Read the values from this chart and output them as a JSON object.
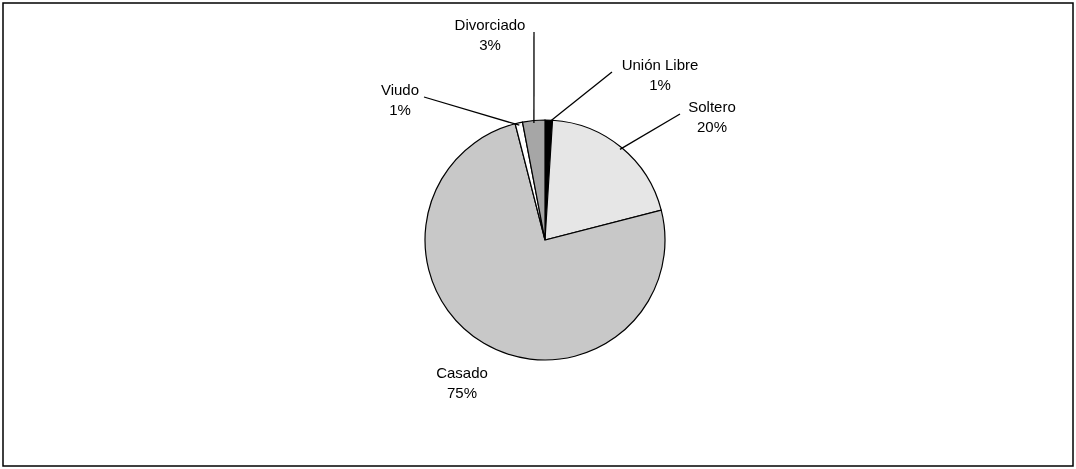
{
  "chart_data": {
    "type": "pie",
    "categories": [
      "Unión Libre",
      "Soltero",
      "Casado",
      "Viudo",
      "Divorciado"
    ],
    "values": [
      1,
      20,
      75,
      1,
      3
    ],
    "value_labels": [
      "1%",
      "20%",
      "75%",
      "1%",
      "3%"
    ],
    "colors": [
      "#000000",
      "#e6e6e6",
      "#c8c8c8",
      "#ffffff",
      "#a6a6a6"
    ]
  }
}
